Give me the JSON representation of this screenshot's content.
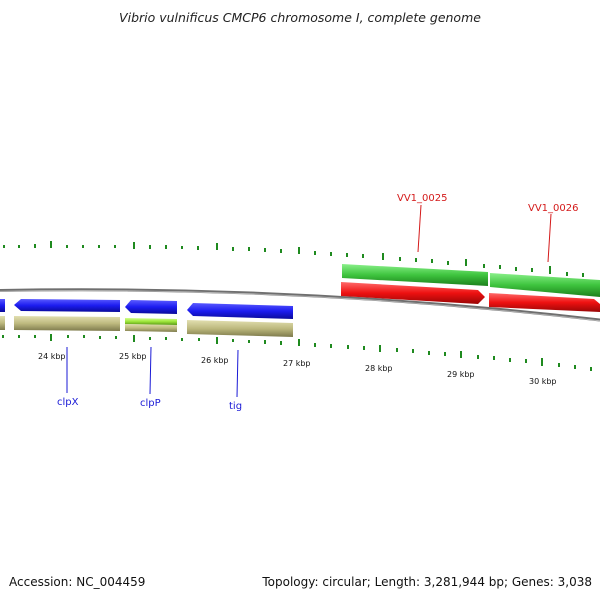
{
  "title": "Vibrio vulnificus CMCP6 chromosome I, complete genome",
  "footer": {
    "accession": "Accession: NC_004459",
    "summary": "Topology: circular; Length: 3,281,944 bp; Genes: 3,038"
  },
  "kbp_labels": [
    "24 kbp",
    "25 kbp",
    "26 kbp",
    "27 kbp",
    "28 kbp",
    "29 kbp",
    "30 kbp"
  ],
  "gene_labels": {
    "clpX": "clpX",
    "clpP": "clpP",
    "tig": "tig",
    "vv1_0025": "VV1_0025",
    "vv1_0026": "VV1_0026"
  },
  "colors": {
    "backbone": "#888888",
    "blue_gene": "#1c1cf0",
    "khaki_gene": "#bdb97e",
    "lime_gene": "#9ee63a",
    "green_gene": "#3ec43e",
    "red_gene": "#ee1111",
    "tick": "#1f8a1f",
    "label_blue": "#1a1ad6",
    "label_red": "#d41a1a"
  }
}
